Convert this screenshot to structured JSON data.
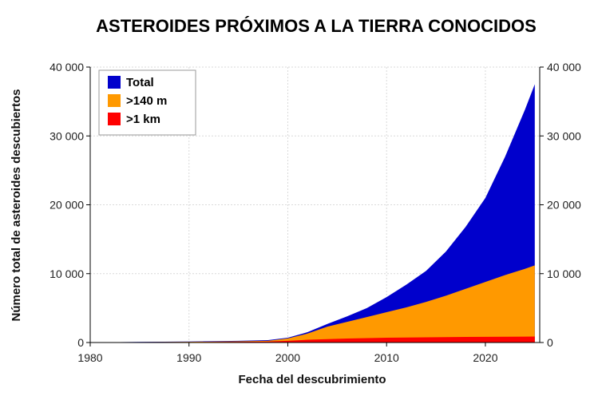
{
  "chart_data": {
    "type": "area",
    "title": "ASTEROIDES PRÓXIMOS A LA TIERRA CONOCIDOS",
    "xlabel": "Fecha del descubrimiento",
    "ylabel": "Número total de asteroides descubiertos",
    "xlim": [
      1980,
      2025.5
    ],
    "ylim": [
      0,
      40000
    ],
    "x_ticks": [
      1980,
      1990,
      2000,
      2010,
      2020
    ],
    "x_tick_labels": [
      "1980",
      "1990",
      "2000",
      "2010",
      "2020"
    ],
    "y_ticks": [
      0,
      10000,
      20000,
      30000,
      40000
    ],
    "y_tick_labels": [
      "0",
      "10 000",
      "20 000",
      "30 000",
      "40 000"
    ],
    "grid": true,
    "secondary_y_axis": true,
    "legend_position": "top-left",
    "x": [
      1982,
      1985,
      1990,
      1995,
      1998,
      2000,
      2002,
      2004,
      2006,
      2008,
      2010,
      2012,
      2014,
      2016,
      2018,
      2020,
      2022,
      2024,
      2025
    ],
    "series": [
      {
        "name": "Total",
        "color": "#0000cc",
        "values": [
          50,
          80,
          150,
          250,
          350,
          700,
          1500,
          2700,
          3800,
          5000,
          6600,
          8400,
          10400,
          13200,
          16800,
          21000,
          27000,
          33800,
          37500
        ]
      },
      {
        "name": ">140 m",
        "color": "#ff9900",
        "values": [
          40,
          60,
          100,
          180,
          250,
          600,
          1300,
          2300,
          3000,
          3700,
          4400,
          5100,
          5900,
          6800,
          7800,
          8800,
          9800,
          10700,
          11200
        ]
      },
      {
        "name": ">1 km",
        "color": "#ff0000",
        "values": [
          30,
          40,
          60,
          100,
          150,
          250,
          400,
          500,
          580,
          640,
          690,
          730,
          760,
          790,
          810,
          830,
          845,
          860,
          870
        ]
      }
    ]
  }
}
